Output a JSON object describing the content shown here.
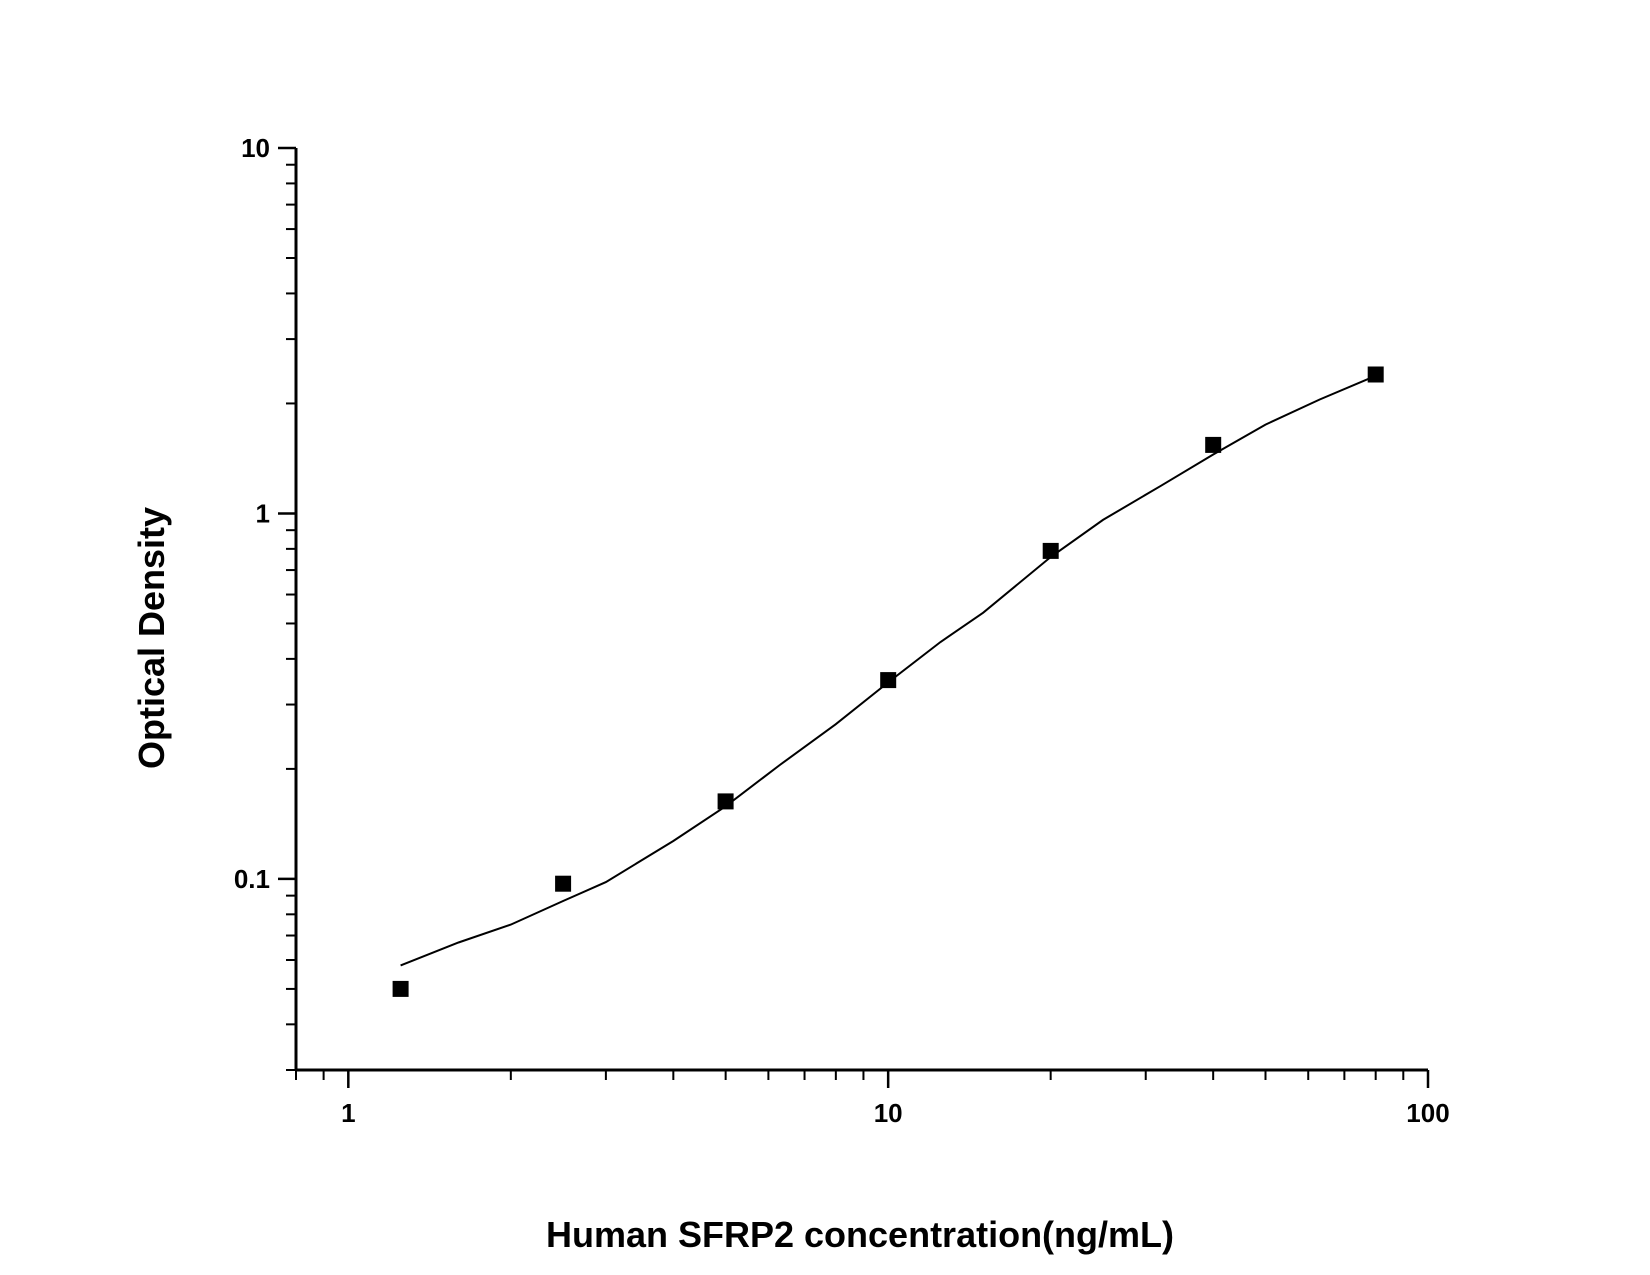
{
  "chart_data": {
    "type": "scatter",
    "title": "",
    "xlabel": "Human SFRP2 concentration(ng/mL)",
    "ylabel": "Optical Density",
    "xscale": "log",
    "yscale": "log",
    "xlim": [
      0.8,
      100
    ],
    "ylim": [
      0.03,
      10
    ],
    "x_ticks": [
      {
        "value": 1,
        "label": "1"
      },
      {
        "value": 10,
        "label": "10"
      },
      {
        "value": 100,
        "label": "100"
      }
    ],
    "y_ticks": [
      {
        "value": 0.1,
        "label": "0.1"
      },
      {
        "value": 1,
        "label": "1"
      },
      {
        "value": 10,
        "label": "10"
      }
    ],
    "grid": false,
    "legend": "none",
    "series": [
      {
        "kind": "points",
        "marker": "square",
        "color": "#000000",
        "x": [
          1.25,
          2.5,
          5,
          10,
          20,
          40,
          80
        ],
        "y": [
          0.05,
          0.097,
          0.163,
          0.35,
          0.79,
          1.54,
          2.4
        ]
      },
      {
        "kind": "fitted-curve",
        "color": "#000000",
        "x": [
          1.25,
          1.6,
          2.0,
          2.5,
          3.0,
          4.0,
          5.0,
          6.3,
          8.0,
          10.0,
          12.5,
          15.0,
          20.0,
          25.0,
          32.0,
          40.0,
          50.0,
          63.0,
          80.0
        ],
        "y": [
          0.058,
          0.067,
          0.075,
          0.087,
          0.098,
          0.127,
          0.158,
          0.205,
          0.265,
          0.345,
          0.445,
          0.535,
          0.76,
          0.96,
          1.19,
          1.45,
          1.75,
          2.05,
          2.38
        ]
      }
    ]
  }
}
